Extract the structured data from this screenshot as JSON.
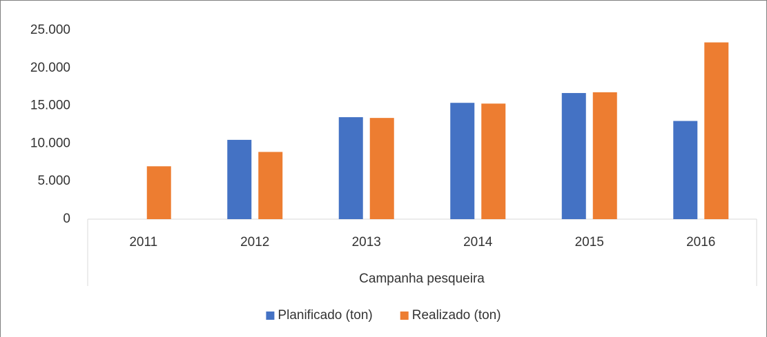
{
  "chart_data": {
    "type": "bar",
    "x_label": "Campanha pesqueira",
    "categories": [
      "2011",
      "2012",
      "2013",
      "2014",
      "2015",
      "2016"
    ],
    "series": [
      {
        "name": "Planificado (ton)",
        "color": "#4472c4",
        "values": [
          null,
          10500,
          13500,
          15400,
          16700,
          13000
        ]
      },
      {
        "name": "Realizado (ton)",
        "color": "#ed7d31",
        "values": [
          7000,
          8900,
          13400,
          15300,
          16800,
          23400
        ]
      }
    ],
    "ylim": [
      0,
      25000
    ],
    "yticks": [
      0,
      {
        "value": 5000,
        "label": "5.000"
      },
      {
        "value": 10000,
        "label": "10.000"
      },
      {
        "value": 15000,
        "label": "15.000"
      },
      {
        "value": 20000,
        "label": "20.000"
      },
      {
        "value": 25000,
        "label": "25.000"
      }
    ],
    "grid": false,
    "legend": "bottom"
  }
}
